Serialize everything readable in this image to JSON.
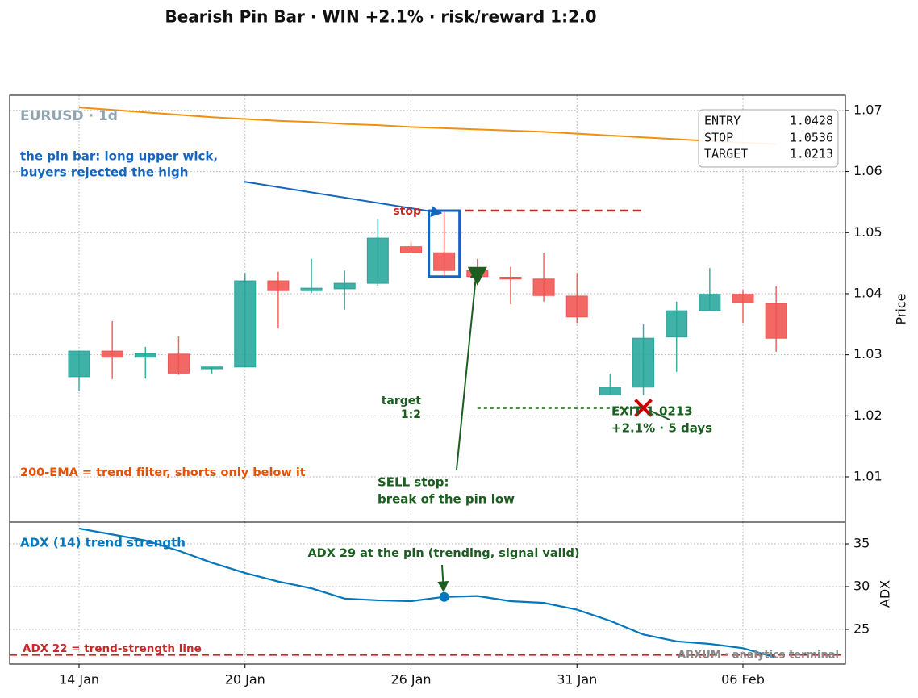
{
  "chart_data": [
    {
      "type": "candlestick",
      "title": "Bearish Pin Bar · WIN +2.1% · risk/reward 1:2.0",
      "ylabel": "Price",
      "watermark": "EURUSD · 1d",
      "categories": [
        "14 Jan",
        null,
        null,
        null,
        null,
        "20 Jan",
        null,
        null,
        null,
        null,
        "26 Jan",
        null,
        null,
        null,
        null,
        "31 Jan",
        null,
        null,
        null,
        null,
        "06 Feb",
        null
      ],
      "open": [
        1.0264,
        1.0306,
        1.0296,
        1.0301,
        1.0277,
        1.028,
        1.0421,
        1.0405,
        1.0408,
        1.0417,
        1.0477,
        1.0467,
        1.0438,
        1.0427,
        1.0424,
        1.0396,
        1.0234,
        1.0247,
        1.0329,
        1.0372,
        1.0399,
        1.0384
      ],
      "high": [
        1.0306,
        1.0355,
        1.0313,
        1.033,
        1.028,
        1.0434,
        1.0436,
        1.0457,
        1.0438,
        1.0522,
        1.0485,
        1.0534,
        1.0457,
        1.0444,
        1.0467,
        1.0434,
        1.0269,
        1.035,
        1.0387,
        1.0442,
        1.0405,
        1.0412
      ],
      "low": [
        1.024,
        1.026,
        1.0261,
        1.0267,
        1.0269,
        1.028,
        1.0343,
        1.0401,
        1.0374,
        1.0413,
        1.0467,
        1.0429,
        1.0428,
        1.0383,
        1.0387,
        1.0352,
        1.0234,
        1.0234,
        1.0272,
        1.0372,
        1.0352,
        1.0305
      ],
      "close": [
        1.0306,
        1.0296,
        1.0302,
        1.027,
        1.028,
        1.0421,
        1.0405,
        1.0409,
        1.0417,
        1.0491,
        1.0467,
        1.0438,
        1.0428,
        1.0424,
        1.0397,
        1.0362,
        1.0247,
        1.0327,
        1.0372,
        1.0399,
        1.0385,
        1.0327
      ],
      "up_color": "#26a69a",
      "down_color": "#ef5350",
      "ema": {
        "color": "#f0900c",
        "values": [
          1.0705,
          1.0701,
          1.0697,
          1.0693,
          1.0689,
          1.0686,
          1.0683,
          1.0681,
          1.0678,
          1.0676,
          1.0673,
          1.0671,
          1.0669,
          1.0667,
          1.0665,
          1.0662,
          1.0659,
          1.0656,
          1.0653,
          1.065,
          1.0647,
          1.0645
        ]
      },
      "levels": [
        {
          "label": "ENTRY",
          "value": 1.0428
        },
        {
          "label": "STOP",
          "value": 1.0536
        },
        {
          "label": "TARGET",
          "value": 1.0213
        }
      ],
      "annotations": [
        "the pin bar: long upper wick,",
        "buyers rejected the high",
        "stop",
        "target",
        "1:2",
        "EXIT 1.0213",
        "+2.1%  ·  5 days",
        "SELL stop:",
        "break of the pin low",
        "200-EMA = trend filter, shorts only below it"
      ],
      "ylim": [
        1.0026,
        1.0725
      ],
      "yticks": [
        1.01,
        1.02,
        1.03,
        1.04,
        1.05,
        1.06,
        1.07
      ],
      "grid": true
    },
    {
      "type": "line",
      "ylabel": "ADX",
      "color": "#0277bd",
      "watermark": "ARXUM · analytics terminal",
      "values": [
        36.8,
        36.1,
        35.4,
        34.2,
        32.8,
        31.6,
        30.6,
        29.8,
        28.6,
        28.4,
        28.3,
        28.8,
        28.9,
        28.3,
        28.1,
        27.3,
        26.0,
        24.4,
        23.6,
        23.3,
        22.8,
        21.7
      ],
      "ref_line": 22,
      "annotations": [
        "ADX (14) trend strength",
        "ADX 29 at the pin (trending, signal valid)",
        "ADX 22 = trend-strength line"
      ],
      "ylim": [
        20.94,
        37.55
      ],
      "yticks": [
        25,
        30,
        35
      ],
      "grid": true
    }
  ]
}
